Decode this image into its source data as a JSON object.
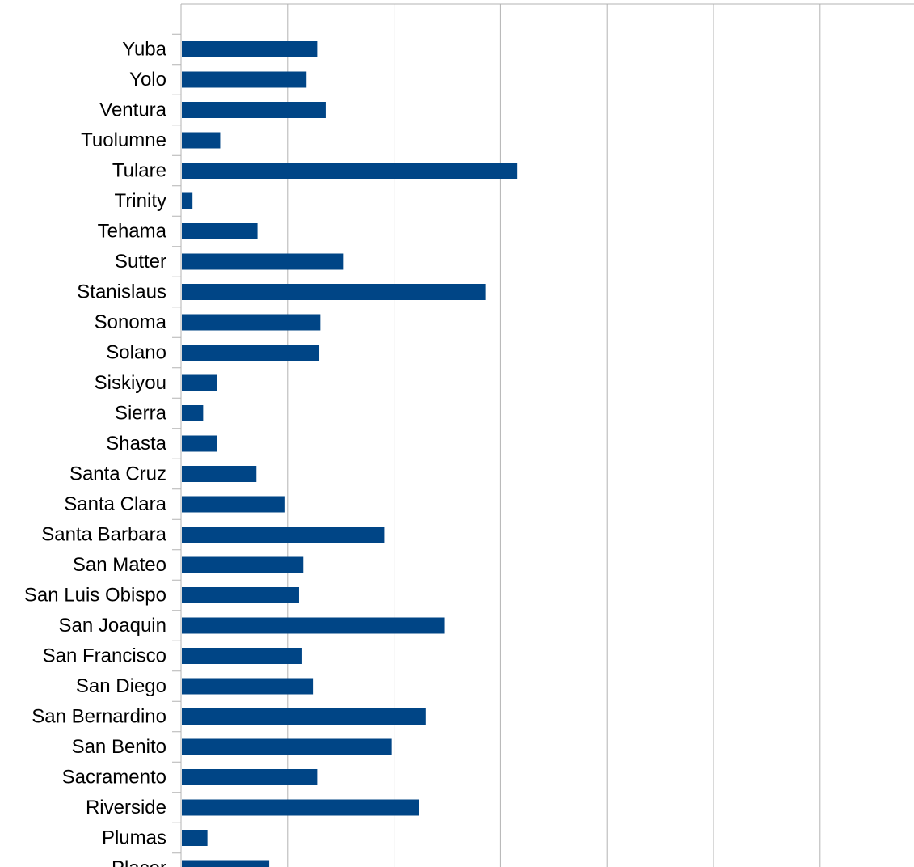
{
  "chart_data": {
    "type": "bar",
    "orientation": "horizontal",
    "title": "",
    "xlabel": "",
    "ylabel": "",
    "xlim": [
      0,
      700
    ],
    "grid": true,
    "legend": "none",
    "bar_color": "#004586",
    "categories": [
      "Yuba",
      "Yolo",
      "Ventura",
      "Tuolumne",
      "Tulare",
      "Trinity",
      "Tehama",
      "Sutter",
      "Stanislaus",
      "Sonoma",
      "Solano",
      "Siskiyou",
      "Sierra",
      "Shasta",
      "Santa Cruz",
      "Santa Clara",
      "Santa Barbara",
      "San Mateo",
      "San Luis Obispo",
      "San Joaquin",
      "San Francisco",
      "San Diego",
      "San Bernardino",
      "San Benito",
      "Sacramento",
      "Riverside",
      "Plumas",
      "Placer"
    ],
    "values": [
      127,
      117,
      135,
      36,
      315,
      10,
      71,
      152,
      285,
      130,
      129,
      33,
      20,
      33,
      70,
      97,
      190,
      114,
      110,
      247,
      113,
      123,
      229,
      197,
      127,
      223,
      24,
      82
    ]
  }
}
